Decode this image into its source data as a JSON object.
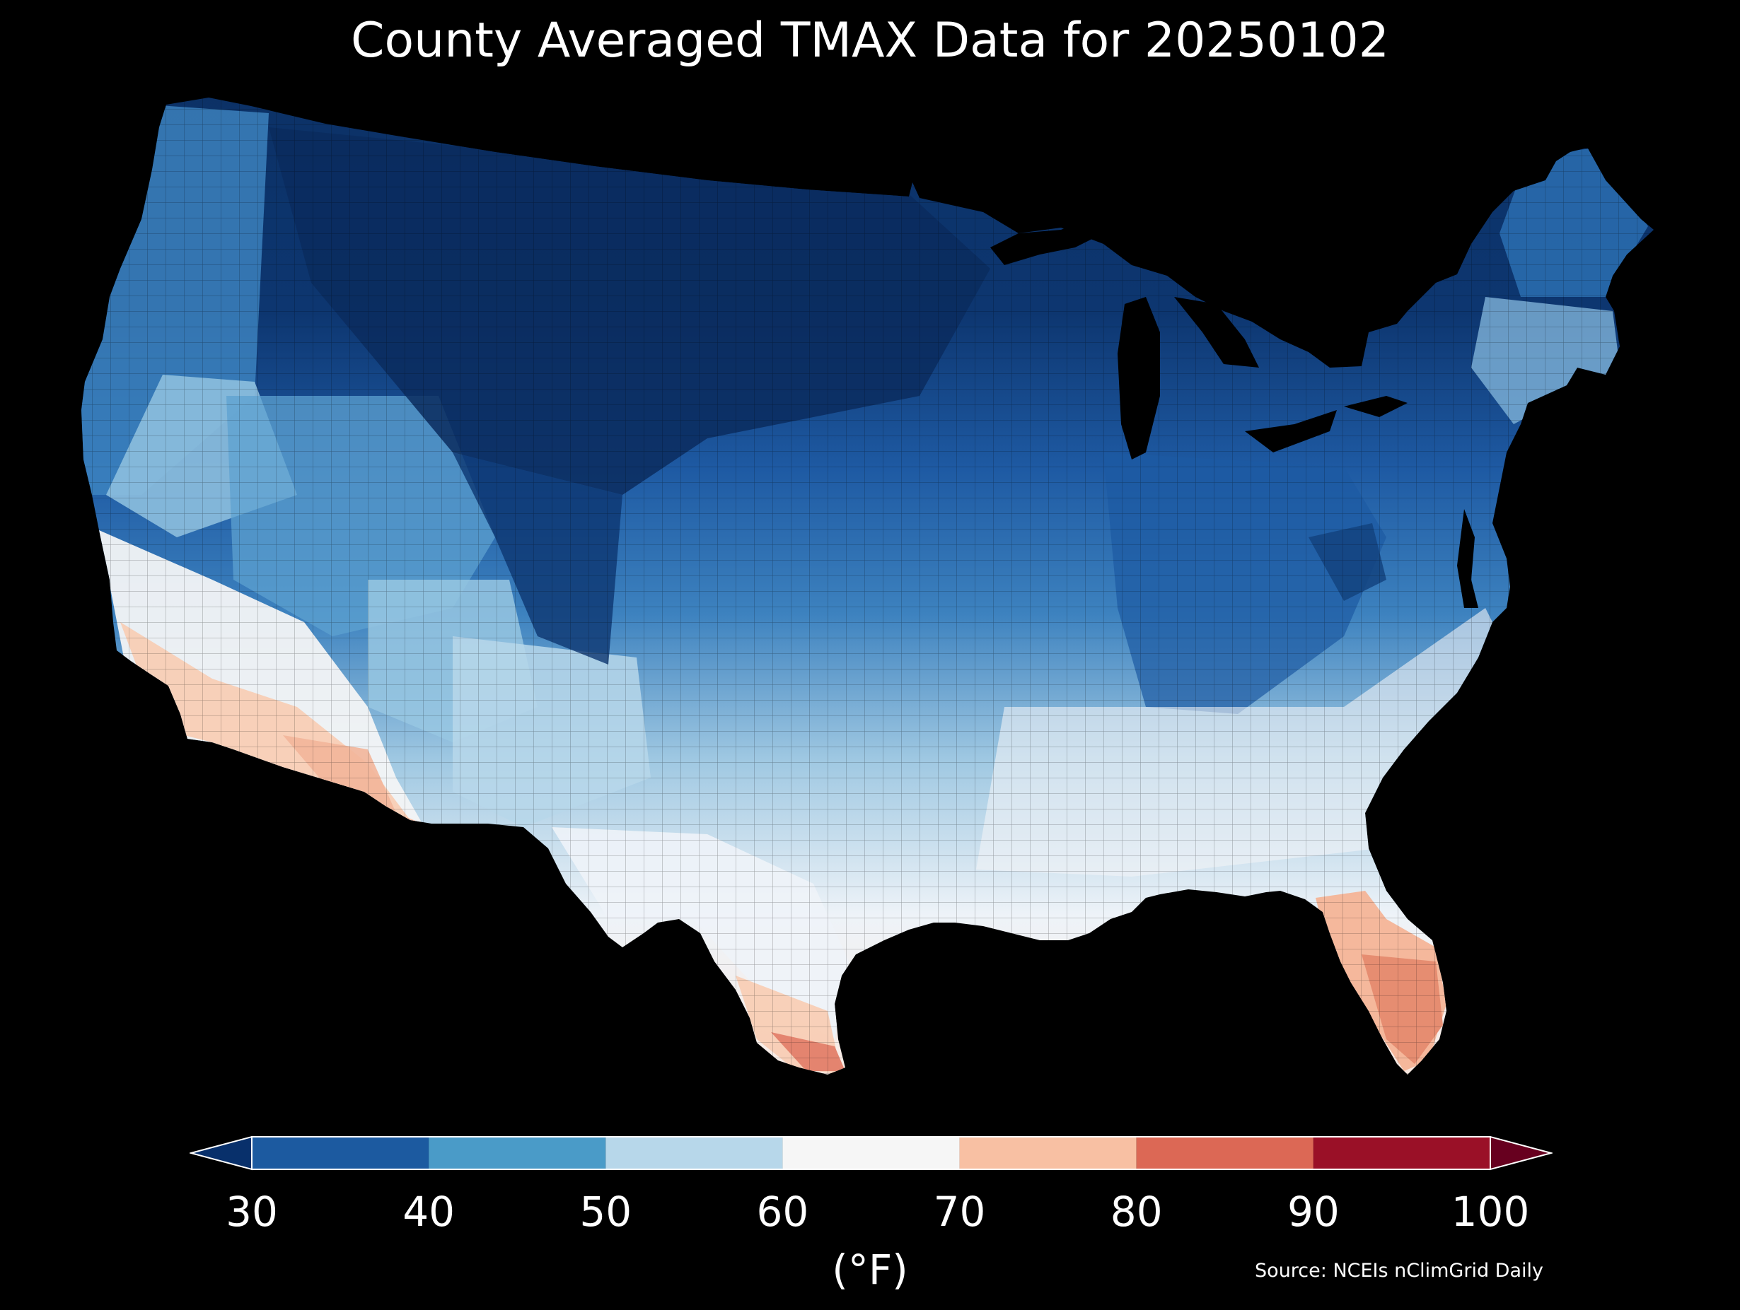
{
  "title": "County Averaged TMAX Data for 20250102",
  "colorbar": {
    "ticks": [
      "30",
      "40",
      "50",
      "60",
      "70",
      "80",
      "90",
      "100"
    ],
    "unit": "(°F)",
    "bins": [
      {
        "from": 30,
        "to": 40,
        "color": "#1c5aa0"
      },
      {
        "from": 40,
        "to": 50,
        "color": "#4a9bc8"
      },
      {
        "from": 50,
        "to": 60,
        "color": "#b7d7ea"
      },
      {
        "from": 60,
        "to": 70,
        "color": "#f6f6f6"
      },
      {
        "from": 70,
        "to": 80,
        "color": "#f8c0a3"
      },
      {
        "from": 80,
        "to": 90,
        "color": "#dc6855"
      },
      {
        "from": 90,
        "to": 100,
        "color": "#9a1027"
      }
    ],
    "under_color": "#08306b",
    "over_color": "#67001f",
    "extend": "both"
  },
  "source": "Source: NCEIs nClimGrid Daily",
  "map": {
    "region": "contiguous United States",
    "unit_of_aggregation": "county",
    "variable": "TMAX",
    "colors": {
      "coldest": "#0b2f62",
      "cold": "#1e5aa3",
      "cool": "#4a93c6",
      "mild": "#a9cfe5",
      "neutral": "#f4f5f6",
      "warm": "#f7c4a8",
      "warmer": "#e4836a",
      "background": "#000000"
    }
  }
}
